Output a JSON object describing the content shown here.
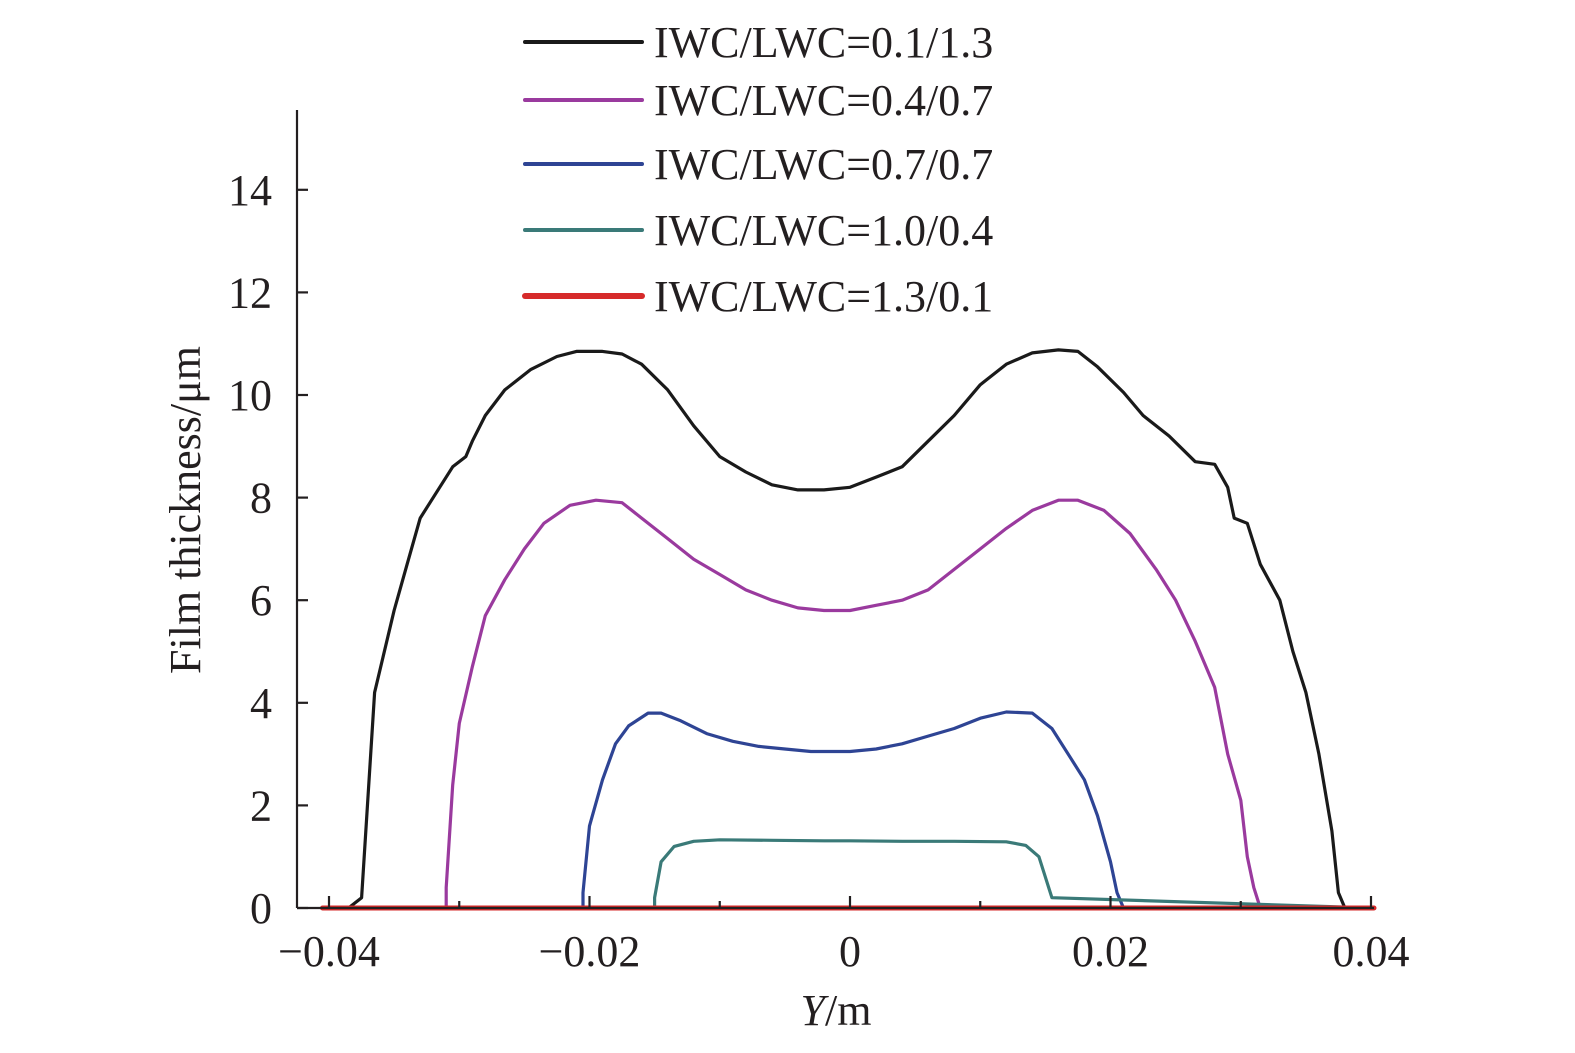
{
  "chart_data": {
    "type": "line",
    "title": "",
    "xlabel_italic": "Y",
    "xlabel_unit": "/m",
    "ylabel": "Film thickness/μm",
    "xlim": [
      -0.0405,
      0.0405
    ],
    "ylim": [
      0,
      15.5
    ],
    "xticks": [
      -0.04,
      -0.02,
      0,
      0.02,
      0.04
    ],
    "xtick_labels": [
      "−0.04",
      "−0.02",
      "0",
      "0.02",
      "0.04"
    ],
    "yticks": [
      0,
      2,
      4,
      6,
      8,
      10,
      12,
      14
    ],
    "ytick_labels": [
      "0",
      "2",
      "4",
      "6",
      "8",
      "10",
      "12",
      "14"
    ],
    "legend_position": "top-center",
    "series": [
      {
        "name": "IWC/LWC=0.1/1.3",
        "color": "#1a1a1a",
        "x": [
          -0.0405,
          -0.0385,
          -0.0375,
          -0.0365,
          -0.035,
          -0.034,
          -0.033,
          -0.0315,
          -0.0305,
          -0.0295,
          -0.029,
          -0.028,
          -0.0265,
          -0.0245,
          -0.0225,
          -0.021,
          -0.019,
          -0.0175,
          -0.016,
          -0.014,
          -0.012,
          -0.01,
          -0.008,
          -0.006,
          -0.004,
          -0.002,
          0.0,
          0.002,
          0.004,
          0.006,
          0.008,
          0.01,
          0.012,
          0.014,
          0.016,
          0.0175,
          0.019,
          0.021,
          0.0225,
          0.0245,
          0.0265,
          0.028,
          0.029,
          0.0295,
          0.0305,
          0.0315,
          0.033,
          0.034,
          0.035,
          0.036,
          0.037,
          0.0375,
          0.038,
          0.0385,
          0.0405
        ],
        "y": [
          0,
          0,
          0.2,
          4.2,
          5.8,
          6.7,
          7.6,
          8.2,
          8.6,
          8.8,
          9.1,
          9.6,
          10.1,
          10.5,
          10.75,
          10.85,
          10.85,
          10.8,
          10.6,
          10.1,
          9.4,
          8.8,
          8.5,
          8.25,
          8.15,
          8.15,
          8.2,
          8.4,
          8.6,
          9.1,
          9.6,
          10.2,
          10.6,
          10.82,
          10.88,
          10.85,
          10.55,
          10.05,
          9.6,
          9.2,
          8.7,
          8.65,
          8.2,
          7.6,
          7.5,
          6.7,
          6.0,
          5.0,
          4.2,
          3.0,
          1.5,
          0.3,
          0,
          0,
          0
        ]
      },
      {
        "name": "IWC/LWC=0.4/0.7",
        "color": "#9a3a9e",
        "x": [
          -0.0405,
          -0.031,
          -0.031,
          -0.0305,
          -0.03,
          -0.029,
          -0.028,
          -0.0265,
          -0.025,
          -0.0235,
          -0.0215,
          -0.0195,
          -0.0175,
          -0.016,
          -0.014,
          -0.012,
          -0.01,
          -0.008,
          -0.006,
          -0.004,
          -0.002,
          0.0,
          0.002,
          0.004,
          0.006,
          0.008,
          0.01,
          0.012,
          0.014,
          0.016,
          0.0175,
          0.0195,
          0.0215,
          0.0235,
          0.025,
          0.0265,
          0.028,
          0.029,
          0.03,
          0.0305,
          0.031,
          0.0315,
          0.0405
        ],
        "y": [
          0,
          0,
          0.4,
          2.4,
          3.6,
          4.7,
          5.7,
          6.4,
          7.0,
          7.5,
          7.85,
          7.95,
          7.9,
          7.6,
          7.2,
          6.8,
          6.5,
          6.2,
          6.0,
          5.85,
          5.8,
          5.8,
          5.9,
          6.0,
          6.2,
          6.6,
          7.0,
          7.4,
          7.75,
          7.95,
          7.95,
          7.75,
          7.3,
          6.6,
          6.0,
          5.2,
          4.3,
          3.0,
          2.1,
          1.0,
          0.4,
          0,
          0
        ]
      },
      {
        "name": "IWC/LWC=0.7/0.7",
        "color": "#2e4494",
        "x": [
          -0.0405,
          -0.0205,
          -0.0205,
          -0.02,
          -0.019,
          -0.018,
          -0.017,
          -0.0155,
          -0.0145,
          -0.013,
          -0.011,
          -0.009,
          -0.007,
          -0.005,
          -0.003,
          -0.001,
          0.0,
          0.002,
          0.004,
          0.006,
          0.008,
          0.01,
          0.012,
          0.014,
          0.0155,
          0.017,
          0.018,
          0.019,
          0.02,
          0.0205,
          0.021,
          0.0405
        ],
        "y": [
          0,
          0,
          0.3,
          1.6,
          2.5,
          3.2,
          3.55,
          3.8,
          3.8,
          3.65,
          3.4,
          3.25,
          3.15,
          3.1,
          3.05,
          3.05,
          3.05,
          3.1,
          3.2,
          3.35,
          3.5,
          3.7,
          3.82,
          3.8,
          3.5,
          2.9,
          2.5,
          1.8,
          0.9,
          0.3,
          0,
          0
        ]
      },
      {
        "name": "IWC/LWC=1.0/0.4",
        "color": "#3a7a78",
        "x": [
          -0.0405,
          -0.015,
          -0.015,
          -0.0145,
          -0.0135,
          -0.012,
          -0.01,
          -0.006,
          -0.002,
          0.0,
          0.004,
          0.008,
          0.012,
          0.0135,
          0.0145,
          0.015,
          0.0155,
          0.0405
        ],
        "y": [
          0,
          0,
          0.2,
          0.9,
          1.2,
          1.3,
          1.33,
          1.32,
          1.31,
          1.31,
          1.3,
          1.3,
          1.29,
          1.22,
          1.0,
          0.6,
          0.2,
          0
        ]
      },
      {
        "name": "IWC/LWC=1.3/0.1",
        "color": "#d62a2a",
        "x": [
          -0.0405,
          0.0405
        ],
        "y": [
          0,
          0
        ]
      }
    ]
  }
}
